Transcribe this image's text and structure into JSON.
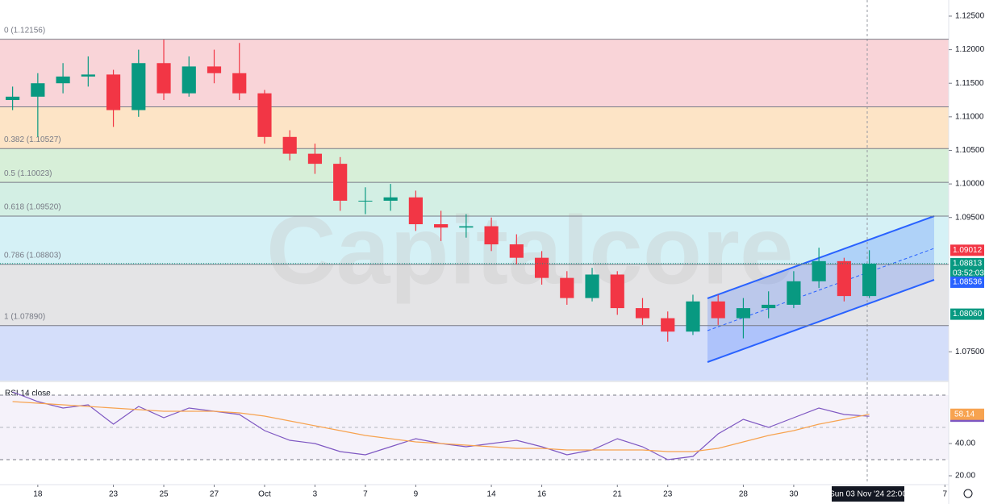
{
  "chart_data": [
    {
      "type": "candlestick",
      "watermark": "Capitalcore",
      "x": [
        -1,
        0,
        1,
        2,
        3,
        4,
        5,
        6,
        7,
        8,
        9,
        10,
        11,
        12,
        13,
        14,
        15,
        16,
        17,
        18,
        19,
        20,
        21,
        22,
        23,
        24,
        25,
        26,
        27,
        28,
        29,
        30,
        31,
        32,
        33
      ],
      "open": [
        1.1125,
        1.113,
        1.115,
        1.116,
        1.1163,
        1.111,
        1.118,
        1.1135,
        1.1175,
        1.1165,
        1.1135,
        1.107,
        1.1045,
        1.103,
        1.0975,
        1.0975,
        1.098,
        1.094,
        1.0935,
        1.0937,
        1.091,
        1.089,
        1.086,
        1.083,
        1.0865,
        1.0815,
        1.08,
        1.078,
        1.0825,
        1.08,
        1.0815,
        1.082,
        1.0855,
        1.0885,
        1.0833
      ],
      "high": [
        1.1145,
        1.1165,
        1.118,
        1.119,
        1.117,
        1.12,
        1.1215,
        1.119,
        1.12,
        1.121,
        1.114,
        1.108,
        1.106,
        1.104,
        1.0995,
        1.1,
        1.099,
        1.096,
        1.0955,
        1.095,
        1.0925,
        1.09,
        1.087,
        1.0875,
        1.087,
        1.083,
        1.081,
        1.0835,
        1.0835,
        1.083,
        1.084,
        1.087,
        1.0905,
        1.089,
        1.09012
      ],
      "low": [
        1.111,
        1.107,
        1.1135,
        1.1145,
        1.1085,
        1.11,
        1.1125,
        1.113,
        1.115,
        1.1125,
        1.106,
        1.1035,
        1.1015,
        1.096,
        1.0955,
        1.096,
        1.093,
        1.0915,
        1.092,
        1.09,
        1.088,
        1.085,
        1.082,
        1.0825,
        1.0805,
        1.079,
        1.0765,
        1.0775,
        1.079,
        1.077,
        1.08,
        1.0815,
        1.0845,
        1.0825,
        1.083
      ],
      "close": [
        1.113,
        1.115,
        1.116,
        1.1163,
        1.111,
        1.118,
        1.1135,
        1.1175,
        1.1165,
        1.1135,
        1.107,
        1.1045,
        1.103,
        1.0975,
        1.0975,
        1.098,
        1.094,
        1.0935,
        1.0937,
        1.091,
        1.089,
        1.086,
        1.083,
        1.0865,
        1.0815,
        1.08,
        1.078,
        1.0825,
        1.08,
        1.0815,
        1.082,
        1.0855,
        1.0885,
        1.0833,
        1.08813
      ],
      "up_color": "#089981",
      "down_color": "#f23645",
      "countdown": "03:52:03",
      "indicator_levels": [
        {
          "value": 1.08536,
          "label": "1.08536",
          "color": "#2962ff"
        },
        {
          "value": 1.0806,
          "label": "1.08060",
          "color": "#089981"
        }
      ],
      "fib_levels": [
        {
          "value": 1.12156,
          "label": "0 (1.12156)",
          "color": "#f9d4d8"
        },
        {
          "value": 1.11149,
          "color": "#fde4c6"
        },
        {
          "value": 1.10527,
          "label": "0.382 (1.10527)",
          "color": "#d7efd8"
        },
        {
          "value": 1.10023,
          "label": "0.5 (1.10023)",
          "color": "#d3efe4"
        },
        {
          "value": 1.0952,
          "label": "0.618 (1.09520)",
          "color": "#d5f1f6"
        },
        {
          "value": 1.08803,
          "label": "0.786 (1.08803)",
          "color": "#e4e4e6"
        },
        {
          "value": 1.0789,
          "label": "1 (1.07890)",
          "color": "#d4defa"
        }
      ],
      "xlim": [
        -1.5,
        36.15
      ],
      "xticks": [
        {
          "value": 0,
          "label": "18"
        },
        {
          "value": 3,
          "label": "23"
        },
        {
          "value": 5,
          "label": "25"
        },
        {
          "value": 7,
          "label": "27"
        },
        {
          "value": 9,
          "label": "Oct"
        },
        {
          "value": 11,
          "label": "3"
        },
        {
          "value": 13,
          "label": "7"
        },
        {
          "value": 15,
          "label": "9"
        },
        {
          "value": 18,
          "label": "14"
        },
        {
          "value": 20,
          "label": "16"
        },
        {
          "value": 23,
          "label": "21"
        },
        {
          "value": 25,
          "label": "23"
        },
        {
          "value": 28,
          "label": "28"
        },
        {
          "value": 30,
          "label": "30"
        },
        {
          "value": 36,
          "label": "7"
        }
      ],
      "cursor_label": "Sun 03 Nov '24   22:00",
      "ylim": [
        1.0707,
        1.1274
      ],
      "yticks": [
        {
          "value": 1.125,
          "label": "1.12500"
        },
        {
          "value": 1.12,
          "label": "1.12000"
        },
        {
          "value": 1.115,
          "label": "1.11500"
        },
        {
          "value": 1.11,
          "label": "1.11000"
        },
        {
          "value": 1.105,
          "label": "1.10500"
        },
        {
          "value": 1.1,
          "label": "1.10000"
        },
        {
          "value": 1.095,
          "label": "1.09500"
        },
        {
          "value": 1.075,
          "label": "1.07500"
        }
      ]
    },
    {
      "type": "line",
      "title": "RSI 14 close",
      "x": [
        -1,
        0,
        1,
        2,
        3,
        4,
        5,
        6,
        7,
        8,
        9,
        10,
        11,
        12,
        13,
        14,
        15,
        16,
        17,
        18,
        19,
        20,
        21,
        22,
        23,
        24,
        25,
        26,
        27,
        28,
        29,
        30,
        31,
        32,
        33
      ],
      "series": [
        {
          "color": "#7e57c2",
          "values": [
            72,
            66,
            62,
            64,
            52,
            63,
            56,
            62,
            60,
            58,
            48,
            42,
            40,
            35,
            33,
            38,
            43,
            40,
            38,
            40,
            42,
            38,
            33,
            36,
            43,
            38,
            30,
            32,
            46,
            55,
            50,
            56,
            62,
            58,
            56.92
          ]
        },
        {
          "color": "#f7a350",
          "values": [
            66,
            65,
            64,
            63,
            62,
            61,
            60,
            60,
            60,
            59,
            57,
            54,
            51,
            48,
            45,
            43,
            41,
            40,
            39,
            38,
            37,
            37,
            36,
            36,
            36,
            36,
            35,
            35,
            37,
            41,
            45,
            48,
            52,
            55,
            58.14
          ]
        }
      ],
      "bands": [
        70,
        30
      ],
      "ylim": [
        15,
        76
      ],
      "yticks": [
        {
          "value": 40,
          "label": "40.00"
        },
        {
          "value": 20,
          "label": "20.00"
        }
      ]
    }
  ]
}
